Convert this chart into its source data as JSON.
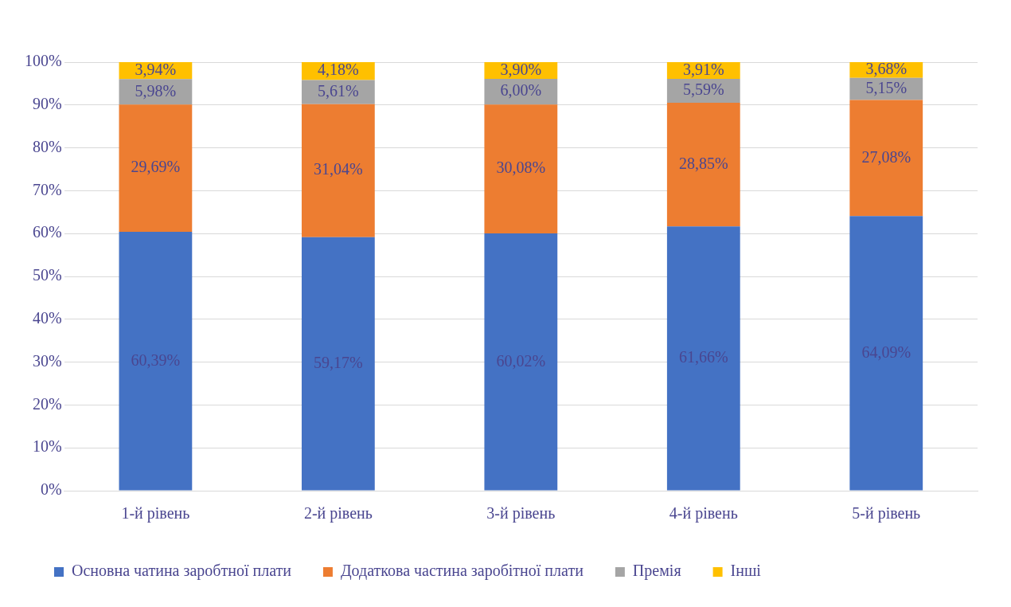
{
  "chart_data": {
    "type": "bar",
    "stacked": true,
    "categories": [
      "1-й рівень",
      "2-й рівень",
      "3-й рівень",
      "4-й рівень",
      "5-й рівень"
    ],
    "series": [
      {
        "name": "Основна чатина заробтної плати",
        "color": "#4472c4",
        "values": [
          60.39,
          59.17,
          60.02,
          61.66,
          64.09
        ],
        "value_labels": [
          "60,39%",
          "59,17%",
          "60,02%",
          "61,66%",
          "64,09%"
        ]
      },
      {
        "name": "Додаткова частина заробітної плати",
        "color": "#ed7d31",
        "values": [
          29.69,
          31.04,
          30.08,
          28.85,
          27.08
        ],
        "value_labels": [
          "29,69%",
          "31,04%",
          "30,08%",
          "28,85%",
          "27,08%"
        ]
      },
      {
        "name": "Премія",
        "color": "#a5a5a5",
        "values": [
          5.98,
          5.61,
          6.0,
          5.59,
          5.15
        ],
        "value_labels": [
          "5,98%",
          "5,61%",
          "6,00%",
          "5,59%",
          "5,15%"
        ]
      },
      {
        "name": "Інші",
        "color": "#ffc000",
        "values": [
          3.94,
          4.18,
          3.9,
          3.91,
          3.68
        ],
        "value_labels": [
          "3,94%",
          "4,18%",
          "3,90%",
          "3,91%",
          "3,68%"
        ]
      }
    ],
    "ylim": [
      0,
      100
    ],
    "yticks": [
      {
        "value": 0,
        "label": "0%"
      },
      {
        "value": 10,
        "label": "10%"
      },
      {
        "value": 20,
        "label": "20%"
      },
      {
        "value": 30,
        "label": "30%"
      },
      {
        "value": 40,
        "label": "40%"
      },
      {
        "value": 50,
        "label": "50%"
      },
      {
        "value": 60,
        "label": "60%"
      },
      {
        "value": 70,
        "label": "70%"
      },
      {
        "value": 80,
        "label": "80%"
      },
      {
        "value": 90,
        "label": "90%"
      },
      {
        "value": 100,
        "label": "100%"
      }
    ],
    "grid": "y",
    "legend": "bottom"
  }
}
